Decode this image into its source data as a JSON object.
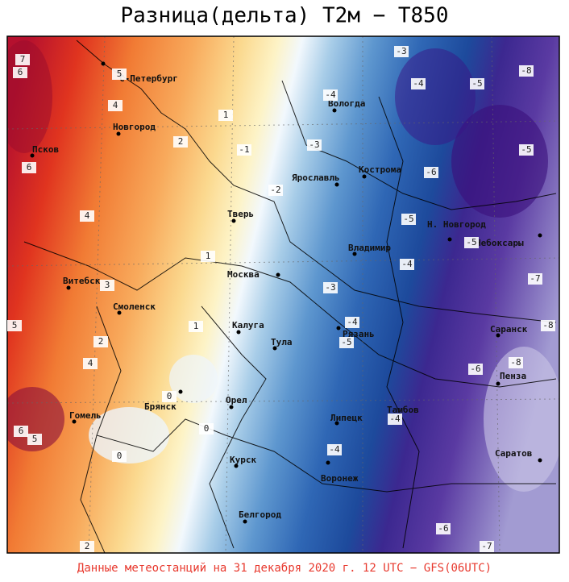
{
  "title": "Разница(дельта) T2м − T850",
  "footer": "Данные метеостанций на 31 декабря 2020 г. 12 UTC − GFS(06UTC)",
  "cities": [
    {
      "name": "С-Петербург"
    },
    {
      "name": "Новгород"
    },
    {
      "name": "Псков"
    },
    {
      "name": "Вологда"
    },
    {
      "name": "Ярославль"
    },
    {
      "name": "Кострома"
    },
    {
      "name": "Тверь"
    },
    {
      "name": "Н. Новгород"
    },
    {
      "name": "Чебоксары"
    },
    {
      "name": "Владимир"
    },
    {
      "name": "Витебск"
    },
    {
      "name": "Москва"
    },
    {
      "name": "Смоленск"
    },
    {
      "name": "Калуга"
    },
    {
      "name": "Тула"
    },
    {
      "name": "Рязань"
    },
    {
      "name": "Саранск"
    },
    {
      "name": "Пенза"
    },
    {
      "name": "Брянск"
    },
    {
      "name": "Орел"
    },
    {
      "name": "Гомель"
    },
    {
      "name": "Тамбов"
    },
    {
      "name": "Липецк"
    },
    {
      "name": "Курск"
    },
    {
      "name": "Воронеж"
    },
    {
      "name": "Саратов"
    },
    {
      "name": "Белгород"
    }
  ],
  "contour_labels": [
    "-3",
    "-4",
    "-5",
    "-8",
    "-4",
    "-5",
    "-1",
    "-3",
    "-6",
    "-2",
    "-5",
    "-5",
    "-4",
    "-3",
    "-7",
    "-4",
    "-5",
    "-8",
    "-8",
    "-6",
    "-4",
    "-4",
    "-6",
    "-7",
    "4",
    "5",
    "6",
    "2",
    "1",
    "4",
    "1",
    "3",
    "5",
    "2",
    "4",
    "1",
    "0",
    "6",
    "5",
    "0",
    "0",
    "2",
    "7",
    "6"
  ]
}
